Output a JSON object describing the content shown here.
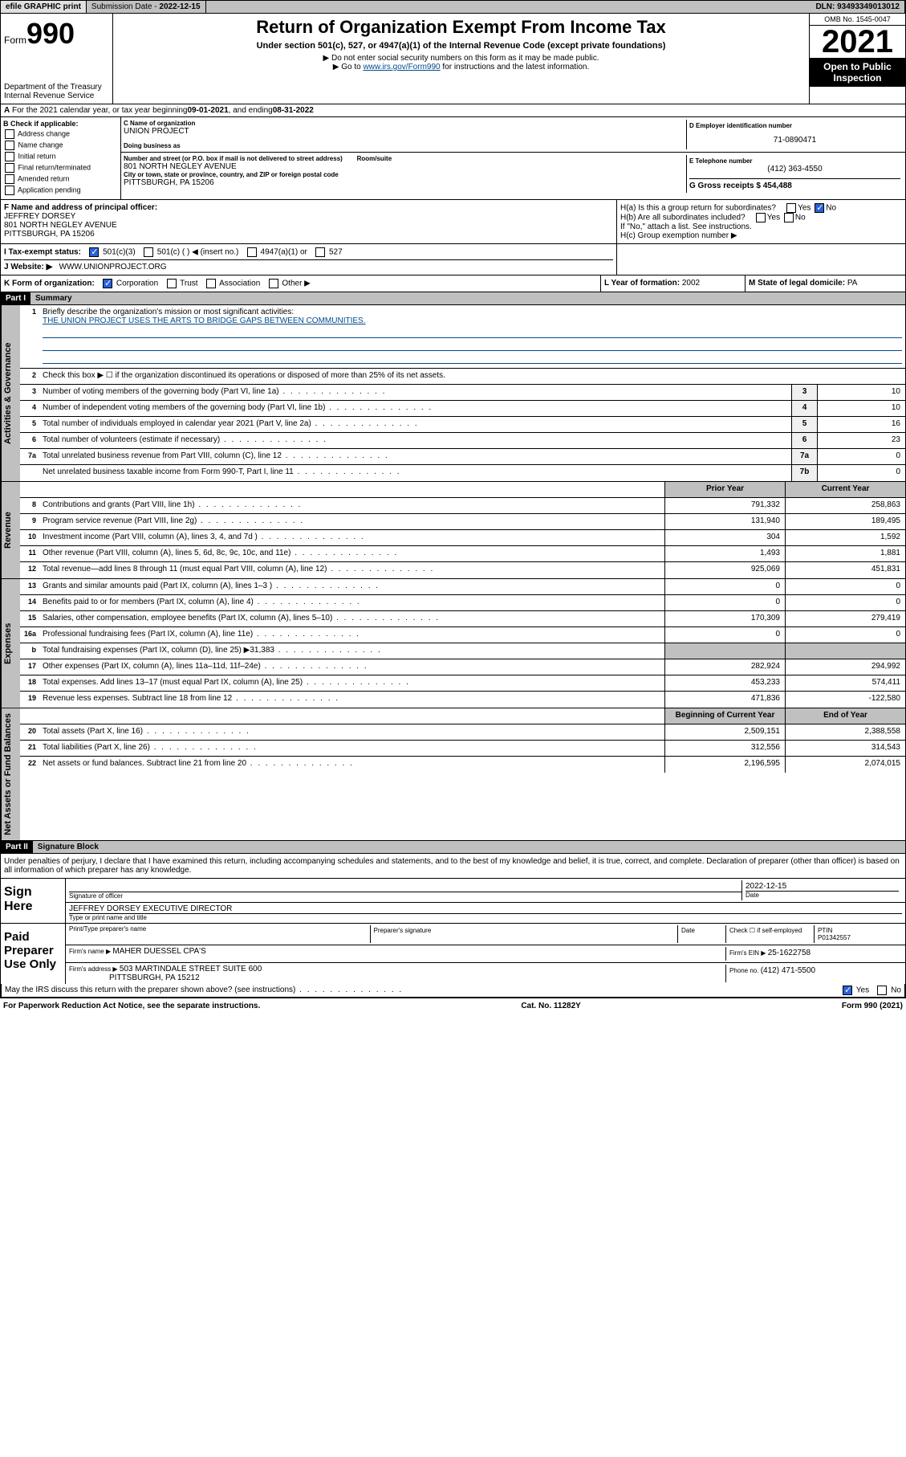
{
  "topbar": {
    "efile": "efile GRAPHIC print",
    "subdate_label": "Submission Date - ",
    "subdate": "2022-12-15",
    "dln_label": "DLN: ",
    "dln": "93493349013012"
  },
  "header": {
    "form_word": "Form",
    "form_num": "990",
    "dept": "Department of the Treasury",
    "irs": "Internal Revenue Service",
    "title": "Return of Organization Exempt From Income Tax",
    "sub": "Under section 501(c), 527, or 4947(a)(1) of the Internal Revenue Code (except private foundations)",
    "note1": "▶ Do not enter social security numbers on this form as it may be made public.",
    "note2_pre": "▶ Go to ",
    "note2_link": "www.irs.gov/Form990",
    "note2_post": " for instructions and the latest information.",
    "omb": "OMB No. 1545-0047",
    "year": "2021",
    "otp": "Open to Public Inspection"
  },
  "line_a": {
    "text": "For the 2021 calendar year, or tax year beginning ",
    "begin": "09-01-2021",
    "mid": " , and ending ",
    "end": "08-31-2022"
  },
  "box_b": {
    "label": "B Check if applicable:",
    "items": [
      "Address change",
      "Name change",
      "Initial return",
      "Final return/terminated",
      "Amended return",
      "Application pending"
    ]
  },
  "box_c": {
    "name_label": "C Name of organization",
    "name": "UNION PROJECT",
    "dba_label": "Doing business as",
    "addr_label": "Number and street (or P.O. box if mail is not delivered to street address)",
    "room_label": "Room/suite",
    "addr": "801 NORTH NEGLEY AVENUE",
    "city_label": "City or town, state or province, country, and ZIP or foreign postal code",
    "city": "PITTSBURGH, PA  15206"
  },
  "box_d": {
    "label": "D Employer identification number",
    "val": "71-0890471"
  },
  "box_e": {
    "label": "E Telephone number",
    "val": "(412) 363-4550"
  },
  "box_g": {
    "label": "G Gross receipts $ ",
    "val": "454,488"
  },
  "box_f": {
    "label": "F Name and address of principal officer:",
    "name": "JEFFREY DORSEY",
    "addr": "801 NORTH NEGLEY AVENUE",
    "city": "PITTSBURGH, PA  15206"
  },
  "box_h": {
    "ha": "H(a)  Is this a group return for subordinates?",
    "hb": "H(b)  Are all subordinates included?",
    "hb_note": "If \"No,\" attach a list. See instructions.",
    "hc": "H(c)  Group exemption number ▶",
    "yes": "Yes",
    "no": "No"
  },
  "line_i": {
    "label": "I     Tax-exempt status:",
    "o1": "501(c)(3)",
    "o2": "501(c) (  ) ◀ (insert no.)",
    "o3": "4947(a)(1) or",
    "o4": "527"
  },
  "line_j": {
    "label": "J     Website: ▶",
    "val": "WWW.UNIONPROJECT.ORG"
  },
  "line_k": {
    "label": "K Form of organization:",
    "o1": "Corporation",
    "o2": "Trust",
    "o3": "Association",
    "o4": "Other ▶"
  },
  "line_l": {
    "label": "L Year of formation: ",
    "val": "2002"
  },
  "line_m": {
    "label": "M State of legal domicile: ",
    "val": "PA"
  },
  "part1": {
    "hdr": "Part I",
    "title": "Summary",
    "vtab_ag": "Activities & Governance",
    "vtab_rev": "Revenue",
    "vtab_exp": "Expenses",
    "vtab_na": "Net Assets or Fund Balances",
    "q1": "Briefly describe the organization's mission or most significant activities:",
    "mission": "THE UNION PROJECT USES THE ARTS TO BRIDGE GAPS BETWEEN COMMUNITIES.",
    "q2": "Check this box ▶ ☐  if the organization discontinued its operations or disposed of more than 25% of its net assets.",
    "rows_gov": [
      {
        "n": "3",
        "t": "Number of voting members of the governing body (Part VI, line 1a)",
        "cn": "3",
        "cv": "10"
      },
      {
        "n": "4",
        "t": "Number of independent voting members of the governing body (Part VI, line 1b)",
        "cn": "4",
        "cv": "10"
      },
      {
        "n": "5",
        "t": "Total number of individuals employed in calendar year 2021 (Part V, line 2a)",
        "cn": "5",
        "cv": "16"
      },
      {
        "n": "6",
        "t": "Total number of volunteers (estimate if necessary)",
        "cn": "6",
        "cv": "23"
      },
      {
        "n": "7a",
        "t": "Total unrelated business revenue from Part VIII, column (C), line 12",
        "cn": "7a",
        "cv": "0"
      },
      {
        "n": "",
        "t": "Net unrelated business taxable income from Form 990-T, Part I, line 11",
        "cn": "7b",
        "cv": "0"
      }
    ],
    "col_prior": "Prior Year",
    "col_curr": "Current Year",
    "rows_rev": [
      {
        "n": "8",
        "t": "Contributions and grants (Part VIII, line 1h)",
        "pv": "791,332",
        "cv": "258,863"
      },
      {
        "n": "9",
        "t": "Program service revenue (Part VIII, line 2g)",
        "pv": "131,940",
        "cv": "189,495"
      },
      {
        "n": "10",
        "t": "Investment income (Part VIII, column (A), lines 3, 4, and 7d )",
        "pv": "304",
        "cv": "1,592"
      },
      {
        "n": "11",
        "t": "Other revenue (Part VIII, column (A), lines 5, 6d, 8c, 9c, 10c, and 11e)",
        "pv": "1,493",
        "cv": "1,881"
      },
      {
        "n": "12",
        "t": "Total revenue—add lines 8 through 11 (must equal Part VIII, column (A), line 12)",
        "pv": "925,069",
        "cv": "451,831"
      }
    ],
    "rows_exp": [
      {
        "n": "13",
        "t": "Grants and similar amounts paid (Part IX, column (A), lines 1–3 )",
        "pv": "0",
        "cv": "0"
      },
      {
        "n": "14",
        "t": "Benefits paid to or for members (Part IX, column (A), line 4)",
        "pv": "0",
        "cv": "0"
      },
      {
        "n": "15",
        "t": "Salaries, other compensation, employee benefits (Part IX, column (A), lines 5–10)",
        "pv": "170,309",
        "cv": "279,419"
      },
      {
        "n": "16a",
        "t": "Professional fundraising fees (Part IX, column (A), line 11e)",
        "pv": "0",
        "cv": "0"
      },
      {
        "n": "b",
        "t": "Total fundraising expenses (Part IX, column (D), line 25) ▶31,383",
        "pv": "",
        "cv": ""
      },
      {
        "n": "17",
        "t": "Other expenses (Part IX, column (A), lines 11a–11d, 11f–24e)",
        "pv": "282,924",
        "cv": "294,992"
      },
      {
        "n": "18",
        "t": "Total expenses. Add lines 13–17 (must equal Part IX, column (A), line 25)",
        "pv": "453,233",
        "cv": "574,411"
      },
      {
        "n": "19",
        "t": "Revenue less expenses. Subtract line 18 from line 12",
        "pv": "471,836",
        "cv": "-122,580"
      }
    ],
    "col_beg": "Beginning of Current Year",
    "col_end": "End of Year",
    "rows_na": [
      {
        "n": "20",
        "t": "Total assets (Part X, line 16)",
        "pv": "2,509,151",
        "cv": "2,388,558"
      },
      {
        "n": "21",
        "t": "Total liabilities (Part X, line 26)",
        "pv": "312,556",
        "cv": "314,543"
      },
      {
        "n": "22",
        "t": "Net assets or fund balances. Subtract line 21 from line 20",
        "pv": "2,196,595",
        "cv": "2,074,015"
      }
    ]
  },
  "part2": {
    "hdr": "Part II",
    "title": "Signature Block",
    "decl": "Under penalties of perjury, I declare that I have examined this return, including accompanying schedules and statements, and to the best of my knowledge and belief, it is true, correct, and complete. Declaration of preparer (other than officer) is based on all information of which preparer has any knowledge.",
    "sign_here": "Sign Here",
    "sig_officer": "Signature of officer",
    "sig_date_label": "Date",
    "sig_date": "2022-12-15",
    "sig_name": "JEFFREY DORSEY EXECUTIVE DIRECTOR",
    "sig_name_label": "Type or print name and title",
    "paid_prep": "Paid Preparer Use Only",
    "prep_name_label": "Print/Type preparer's name",
    "prep_sig_label": "Preparer's signature",
    "prep_date_label": "Date",
    "prep_self_label": "Check ☐ if self-employed",
    "ptin_label": "PTIN",
    "ptin": "P01342557",
    "firm_name_label": "Firm's name   ▶ ",
    "firm_name": "MAHER DUESSEL CPA'S",
    "firm_ein_label": "Firm's EIN ▶ ",
    "firm_ein": "25-1622758",
    "firm_addr_label": "Firm's address ▶ ",
    "firm_addr": "503 MARTINDALE STREET SUITE 600",
    "firm_city": "PITTSBURGH, PA  15212",
    "firm_phone_label": "Phone no. ",
    "firm_phone": "(412) 471-5500",
    "irs_discuss": "May the IRS discuss this return with the preparer shown above? (see instructions)"
  },
  "footer": {
    "left": "For Paperwork Reduction Act Notice, see the separate instructions.",
    "mid": "Cat. No. 11282Y",
    "right": "Form 990 (2021)"
  }
}
